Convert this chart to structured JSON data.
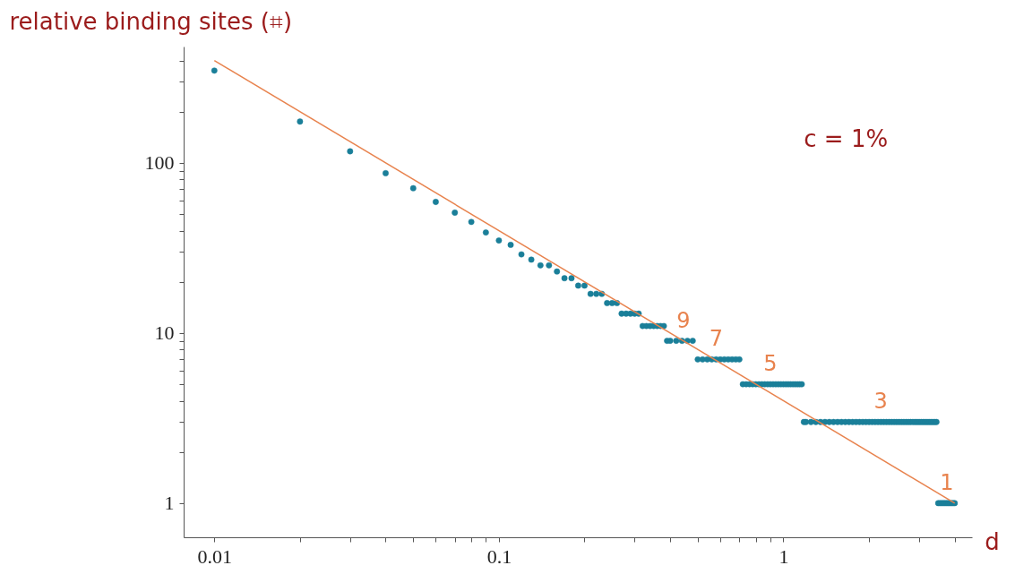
{
  "chart_data": {
    "type": "scatter",
    "ylabel": "relative binding sites (⌗)",
    "xlabel": "d",
    "log": "xy",
    "grid": false,
    "marker": "circle",
    "xlim": [
      0.0078,
      4.6
    ],
    "ylim": [
      0.63,
      483
    ],
    "xticks": [
      0.01,
      {
        "value": 0.02,
        "label": null
      },
      {
        "value": 0.03,
        "label": null
      },
      {
        "value": 0.04,
        "label": null
      },
      {
        "value": 0.05,
        "label": null
      },
      {
        "value": 0.06,
        "label": null
      },
      {
        "value": 0.07,
        "label": null
      },
      {
        "value": 0.08,
        "label": null
      },
      {
        "value": 0.09,
        "label": null
      },
      0.1,
      {
        "value": 0.2,
        "label": null
      },
      {
        "value": 0.3,
        "label": null
      },
      {
        "value": 0.4,
        "label": null
      },
      {
        "value": 0.5,
        "label": null
      },
      {
        "value": 0.6,
        "label": null
      },
      {
        "value": 0.7,
        "label": null
      },
      {
        "value": 0.8,
        "label": null
      },
      {
        "value": 0.9,
        "label": null
      },
      1,
      {
        "value": 2,
        "label": null
      },
      {
        "value": 3,
        "label": null
      },
      {
        "value": 4,
        "label": null
      }
    ],
    "yticks": [
      1,
      {
        "value": 2,
        "label": null
      },
      {
        "value": 3,
        "label": null
      },
      {
        "value": 4,
        "label": null
      },
      {
        "value": 5,
        "label": null
      },
      {
        "value": 6,
        "label": null
      },
      {
        "value": 7,
        "label": null
      },
      {
        "value": 8,
        "label": null
      },
      {
        "value": 9,
        "label": null
      },
      10,
      {
        "value": 20,
        "label": null
      },
      {
        "value": 30,
        "label": null
      },
      {
        "value": 40,
        "label": null
      },
      {
        "value": 50,
        "label": null
      },
      {
        "value": 60,
        "label": null
      },
      {
        "value": 70,
        "label": null
      },
      {
        "value": 80,
        "label": null
      },
      {
        "value": 90,
        "label": null
      },
      100,
      {
        "value": 200,
        "label": null
      },
      {
        "value": 300,
        "label": null
      },
      {
        "value": 400,
        "label": null
      }
    ],
    "series": [
      {
        "color": "#1a7f99",
        "x": [
          0.01,
          0.02,
          0.03,
          0.04,
          0.05,
          0.06,
          0.07,
          0.08,
          0.09,
          0.1,
          0.11,
          0.12,
          0.13,
          0.14,
          0.15,
          0.16,
          0.17,
          0.18,
          0.19,
          0.2,
          0.21,
          0.22,
          0.23,
          0.24,
          0.25,
          0.26,
          0.27,
          0.28,
          0.29,
          0.3,
          0.31,
          0.32,
          0.33,
          0.34,
          0.35,
          0.36,
          0.37,
          0.38,
          0.39,
          0.4,
          0.42,
          0.44,
          0.46,
          0.48,
          0.5,
          0.52,
          0.54,
          0.56,
          0.58,
          0.6,
          0.62,
          0.64,
          0.66,
          0.68,
          0.7,
          0.72,
          0.74,
          0.76,
          0.78,
          0.8,
          0.82,
          0.84,
          0.86,
          0.88,
          0.9,
          0.92,
          0.94,
          0.96,
          0.98,
          1.0,
          1.02,
          1.04,
          1.06,
          1.08,
          1.1,
          1.12,
          1.14,
          1.16,
          1.18,
          1.2,
          1.25,
          1.3,
          1.35,
          1.4,
          1.45,
          1.5,
          1.55,
          1.6,
          1.65,
          1.7,
          1.75,
          1.8,
          1.85,
          1.9,
          1.95,
          2.0,
          2.05,
          2.1,
          2.15,
          2.2,
          2.25,
          2.3,
          2.35,
          2.4,
          2.45,
          2.5,
          2.55,
          2.6,
          2.65,
          2.7,
          2.75,
          2.8,
          2.85,
          2.9,
          2.95,
          3.0,
          3.05,
          3.1,
          3.15,
          3.2,
          3.25,
          3.3,
          3.35,
          3.4,
          3.45,
          3.5,
          3.55,
          3.6,
          3.65,
          3.7,
          3.75,
          3.8,
          3.85,
          3.9,
          3.95,
          4.0
        ],
        "values": [
          349,
          175,
          117,
          87,
          71,
          59,
          51,
          45,
          39,
          35,
          33,
          29,
          27,
          25,
          25,
          23,
          21,
          21,
          19,
          19,
          17,
          17,
          17,
          15,
          15,
          15,
          13,
          13,
          13,
          13,
          13,
          11,
          11,
          11,
          11,
          11,
          11,
          11,
          9,
          9,
          9,
          9,
          9,
          9,
          7,
          7,
          7,
          7,
          7,
          7,
          7,
          7,
          7,
          7,
          7,
          5,
          5,
          5,
          5,
          5,
          5,
          5,
          5,
          5,
          5,
          5,
          5,
          5,
          5,
          5,
          5,
          5,
          5,
          5,
          5,
          5,
          5,
          5,
          3,
          3,
          3,
          3,
          3,
          3,
          3,
          3,
          3,
          3,
          3,
          3,
          3,
          3,
          3,
          3,
          3,
          3,
          3,
          3,
          3,
          3,
          3,
          3,
          3,
          3,
          3,
          3,
          3,
          3,
          3,
          3,
          3,
          3,
          3,
          3,
          3,
          3,
          3,
          3,
          3,
          3,
          3,
          3,
          3,
          3,
          3,
          1,
          1,
          1,
          1,
          1,
          1,
          1,
          1,
          1,
          1,
          1
        ]
      },
      {
        "type": "line",
        "marker": "none",
        "color": "#e8834e",
        "x": [
          0.01,
          4.0
        ],
        "values": [
          400,
          1
        ]
      }
    ],
    "annotations": [
      {
        "text": "9",
        "x": 0.445,
        "y": 9
      },
      {
        "text": "7",
        "x": 0.58,
        "y": 7
      },
      {
        "text": "5",
        "x": 0.9,
        "y": 5
      },
      {
        "text": "3",
        "x": 2.2,
        "y": 3
      },
      {
        "text": "1",
        "x": 3.75,
        "y": 1
      },
      "c = 1%"
    ]
  }
}
